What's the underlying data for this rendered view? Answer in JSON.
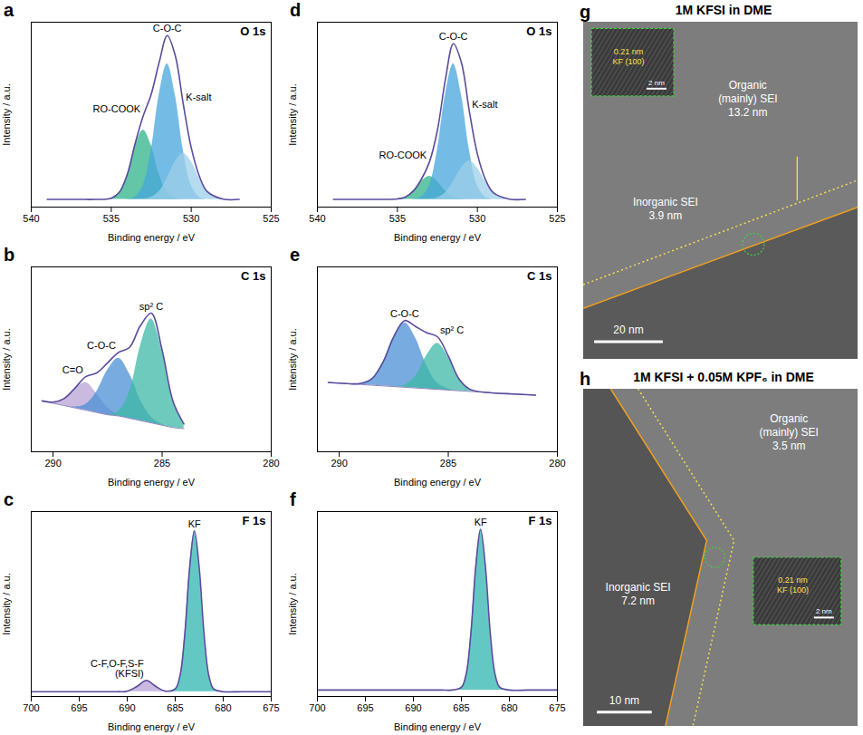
{
  "chart_data": [
    {
      "type": "line",
      "panel": "a",
      "title": "O 1s",
      "x_label": "Binding energy / eV",
      "y_label": "Intensity / a.u.",
      "xlim": [
        540,
        525
      ],
      "xticks": [
        540,
        535,
        530,
        525
      ],
      "ylim": [
        0,
        120
      ],
      "yticks": [],
      "tick_labels": "x",
      "x": [
        539,
        538,
        537,
        536,
        535,
        534.5,
        534,
        533.5,
        533,
        532.5,
        532,
        531.5,
        531,
        530.5,
        530,
        529.5,
        529,
        528,
        527
      ],
      "values": [
        5,
        5,
        5,
        5,
        5.8,
        9.5,
        21.1,
        41.5,
        59.2,
        73.3,
        94.1,
        111.3,
        98.4,
        67,
        38.6,
        20.3,
        10.1,
        5.2,
        5
      ],
      "color": "#5b4b9d",
      "background": 5,
      "series": [
        {
          "name": "RO-COOK",
          "type": "area",
          "color": "#2fb38a",
          "values": [
            5,
            5,
            5,
            5,
            5.8,
            9.5,
            21,
            40,
            50,
            40,
            21,
            9.5,
            5.8,
            5,
            5,
            5,
            5,
            5,
            5
          ]
        },
        {
          "name": "C-O-C",
          "type": "area",
          "color": "#46a6dc",
          "values": [
            5,
            5,
            5,
            5,
            5,
            5,
            5.1,
            6.5,
            14,
            37,
            73,
            93,
            73,
            37,
            14,
            6.5,
            5,
            5,
            5
          ]
        },
        {
          "name": "K-salt",
          "type": "area",
          "color": "#9ccfe8",
          "values": [
            5,
            5,
            5,
            5,
            5,
            5,
            5,
            5,
            5.2,
            6.3,
            10.1,
            18.8,
            29.6,
            35,
            29.6,
            18.8,
            10.1,
            5.2,
            5
          ]
        }
      ]
    },
    {
      "type": "line",
      "panel": "b",
      "title": "C 1s",
      "x_label": "Binding energy / eV",
      "y_label": "Intensity / a.u.",
      "xlim": [
        291,
        280
      ],
      "xticks": [
        290,
        285,
        280
      ],
      "ylim": [
        0,
        80
      ],
      "yticks": [],
      "tick_labels": "x",
      "x": [
        290.5,
        290,
        289.5,
        289,
        288.5,
        288,
        287.5,
        287,
        286.5,
        286,
        285.5,
        285,
        284.5,
        284
      ],
      "values": [
        22,
        21.5,
        23,
        27.5,
        32.5,
        34.1,
        38.5,
        43,
        45.1,
        54.5,
        60,
        43.9,
        21.8,
        12
      ],
      "color": "#5b4b9d",
      "background": [
        22,
        21,
        20,
        19,
        18,
        17,
        16,
        15.5,
        14.5,
        13.5,
        12.5,
        11.5,
        10.5,
        10
      ],
      "series": [
        {
          "name": "C=O",
          "type": "area",
          "color": "#b8a3d6",
          "values": [
            22,
            21.5,
            23,
            27.1,
            30,
            25.1,
            19,
            16,
            14.5,
            13.5,
            12.5,
            11.5,
            10.5,
            10
          ]
        },
        {
          "name": "C-O-C",
          "type": "area",
          "color": "#4b8fd6",
          "values": [
            22,
            21,
            20,
            19.4,
            20.5,
            26,
            35.3,
            40.5,
            33.8,
            22.5,
            15,
            11.9,
            10.5,
            10
          ]
        },
        {
          "name": "sp² C",
          "type": "area",
          "color": "#3cb8a6",
          "values": [
            22,
            21,
            20,
            19,
            18,
            17,
            16.2,
            17.5,
            25.8,
            45.5,
            57.5,
            43.5,
            21.8,
            12
          ]
        }
      ]
    },
    {
      "type": "line",
      "panel": "c",
      "title": "F 1s",
      "x_label": "Binding energy / eV",
      "y_label": "Intensity / a.u.",
      "xlim": [
        700,
        675
      ],
      "xticks": [
        700,
        695,
        690,
        685,
        680,
        675
      ],
      "ylim": [
        0,
        115
      ],
      "yticks": [],
      "tick_labels": "x",
      "x": [
        700,
        697,
        694,
        691,
        690,
        689,
        688,
        687,
        686,
        685,
        684.5,
        684,
        683.5,
        683,
        682.5,
        682,
        681.5,
        681,
        680,
        678,
        675
      ],
      "values": [
        3,
        3,
        3,
        3,
        3.3,
        6.2,
        10,
        6.2,
        3.3,
        4.7,
        13,
        39,
        80,
        103,
        80,
        39,
        13,
        4.7,
        3,
        3,
        3
      ],
      "color": "#5b4b9d",
      "background": 3,
      "series": [
        {
          "name": "C-F,O-F,S-F (KFSI)",
          "type": "area",
          "color": "#b8a3d6",
          "values": [
            3,
            3,
            3,
            3,
            3.3,
            6.2,
            10,
            6.2,
            3.3,
            3,
            3,
            3,
            3,
            3,
            3,
            3,
            3,
            3,
            3,
            3,
            3
          ]
        },
        {
          "name": "KF",
          "type": "area",
          "color": "#2fb5b0",
          "values": [
            3,
            3,
            3,
            3,
            3,
            3,
            3,
            3,
            3,
            4.7,
            13,
            39,
            80,
            103,
            80,
            39,
            13,
            4.7,
            3,
            3,
            3
          ]
        }
      ]
    },
    {
      "type": "line",
      "panel": "d",
      "title": "O 1s",
      "x_label": "Binding energy / eV",
      "y_label": "Intensity / a.u.",
      "xlim": [
        540,
        525
      ],
      "xticks": [
        540,
        535,
        530,
        525
      ],
      "ylim": [
        0,
        120
      ],
      "yticks": [],
      "tick_labels": "x",
      "x": [
        539,
        538,
        537,
        536,
        535,
        534.5,
        534,
        533.5,
        533,
        532.5,
        532,
        531.5,
        531,
        530.5,
        530,
        529.5,
        529,
        528,
        527
      ],
      "values": [
        5,
        5,
        5,
        5,
        5.3,
        6.5,
        10.5,
        18.1,
        29.2,
        49.7,
        82.7,
        106,
        93.8,
        62,
        34.5,
        18,
        9.3,
        5.2,
        5
      ],
      "color": "#5b4b9d",
      "background": 5,
      "series": [
        {
          "name": "RO-COOK",
          "type": "area",
          "color": "#2fb38a",
          "values": [
            5,
            5,
            5,
            5,
            5.3,
            6.5,
            10.4,
            16.6,
            20,
            16.6,
            10.4,
            6.5,
            5.3,
            5,
            5,
            5,
            5,
            5,
            5
          ]
        },
        {
          "name": "C-O-C",
          "type": "area",
          "color": "#46a6dc",
          "values": [
            5,
            5,
            5,
            5,
            5,
            5,
            5.1,
            6.5,
            14,
            37,
            73,
            93,
            73,
            37,
            14,
            6.5,
            5,
            5,
            5
          ]
        },
        {
          "name": "K-salt",
          "type": "area",
          "color": "#9ccfe8",
          "values": [
            5,
            5,
            5,
            5,
            5,
            5,
            5,
            5,
            5.2,
            6.1,
            9.3,
            16.5,
            25.5,
            30,
            25.5,
            16.5,
            9.3,
            5.2,
            5
          ]
        }
      ]
    },
    {
      "type": "line",
      "panel": "e",
      "title": "C 1s",
      "x_label": "Binding energy / eV",
      "y_label": "Intensity / a.u.",
      "xlim": [
        291,
        280
      ],
      "xticks": [
        290,
        285,
        280
      ],
      "ylim": [
        0,
        80
      ],
      "yticks": [],
      "tick_labels": "x",
      "x": [
        290.5,
        290,
        289.5,
        289,
        288.5,
        288,
        287.5,
        287,
        286.5,
        286,
        285.5,
        285,
        284.5,
        284,
        283,
        282,
        281
      ],
      "values": [
        30,
        29.7,
        29.4,
        29.6,
        31.6,
        38.6,
        49.8,
        56.8,
        54.2,
        51.6,
        49.8,
        41.4,
        31.4,
        27,
        25.5,
        25,
        24.5
      ],
      "color": "#5b4b9d",
      "background": [
        30,
        29.7,
        29.4,
        29.1,
        28.8,
        28.5,
        28.2,
        27.9,
        27.6,
        27.3,
        27,
        26.7,
        26.4,
        26.1,
        25.5,
        25,
        24.5
      ],
      "series": [
        {
          "name": "C-O-C",
          "type": "area",
          "color": "#4b8fd6",
          "values": [
            30,
            29.7,
            29.4,
            29.6,
            31.6,
            38.6,
            49.8,
            55.9,
            49.2,
            37.4,
            29.8,
            27.2,
            26.4,
            26.1,
            25.5,
            25,
            24.5
          ]
        },
        {
          "name": "sp² C",
          "type": "area",
          "color": "#3cb8a6",
          "values": [
            30,
            29.7,
            29.4,
            29.1,
            28.8,
            28.5,
            28.2,
            28.8,
            32.6,
            41.5,
            47,
            40.9,
            31.4,
            27,
            25.5,
            25,
            24.5
          ]
        }
      ]
    },
    {
      "type": "line",
      "panel": "f",
      "title": "F 1s",
      "x_label": "Binding energy / eV",
      "y_label": "Intensity / a.u.",
      "xlim": [
        700,
        675
      ],
      "xticks": [
        700,
        695,
        690,
        685,
        680,
        675
      ],
      "ylim": [
        0,
        115
      ],
      "yticks": [],
      "tick_labels": "x",
      "x": [
        700,
        697,
        694,
        691,
        690,
        689,
        688,
        687,
        686,
        685,
        684.5,
        684,
        683.5,
        683,
        682.5,
        682,
        681.5,
        681,
        680,
        678,
        675
      ],
      "values": [
        4,
        4,
        4,
        4,
        4,
        4,
        4,
        4,
        4,
        5.7,
        14,
        40,
        81,
        104,
        81,
        40,
        14,
        5.7,
        4,
        4,
        4
      ],
      "color": "#5b4b9d",
      "background": 4,
      "series": [
        {
          "name": "KF",
          "type": "area",
          "color": "#2fb5b0",
          "values": [
            4,
            4,
            4,
            4,
            4,
            4,
            4,
            4,
            4,
            5.7,
            14,
            40,
            81,
            104,
            81,
            40,
            14,
            5.7,
            4,
            4,
            4
          ]
        }
      ]
    }
  ],
  "images": [
    {
      "panel": "g",
      "title": "1M KFSI in DME",
      "organic_label": "Organic (mainly) SEI",
      "organic_thickness": "13.2 nm",
      "inorganic_label": "Inorganic SEI",
      "inorganic_thickness": "3.9 nm",
      "scale_bar": "20 nm",
      "inset": {
        "spacing": "0.21 nm",
        "plane": "KF (100)",
        "scale_bar": "2 nm"
      }
    },
    {
      "panel": "h",
      "title": "1M KFSI + 0.05M KPF₆ in DME",
      "organic_label": "Organic (mainly) SEI",
      "organic_thickness": "3.5 nm",
      "inorganic_label": "Inorganic SEI",
      "inorganic_thickness": "7.2 nm",
      "scale_bar": "10 nm",
      "inset": {
        "spacing": "0.21 nm",
        "plane": "KF (100)",
        "scale_bar": "2 nm"
      }
    }
  ]
}
